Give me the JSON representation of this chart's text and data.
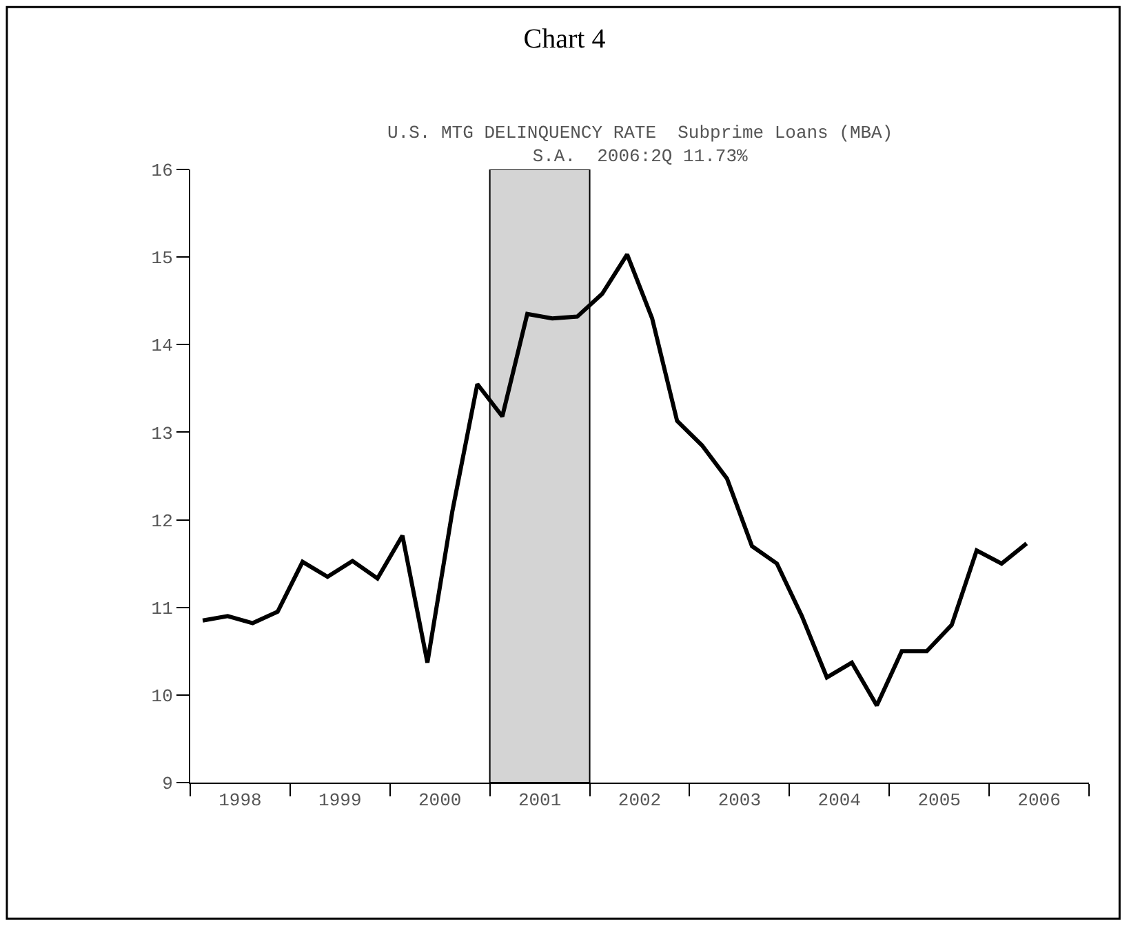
{
  "chart_data": {
    "type": "line",
    "title": "Chart 4",
    "subtitle": "U.S. MTG DELINQUENCY RATE  Subprime Loans (MBA)\nS.A.  2006:2Q 11.73%",
    "x": [
      1998.125,
      1998.375,
      1998.625,
      1998.875,
      1999.125,
      1999.375,
      1999.625,
      1999.875,
      2000.125,
      2000.375,
      2000.625,
      2000.875,
      2001.125,
      2001.375,
      2001.625,
      2001.875,
      2002.125,
      2002.375,
      2002.625,
      2002.875,
      2003.125,
      2003.375,
      2003.625,
      2003.875,
      2004.125,
      2004.375,
      2004.625,
      2004.875,
      2005.125,
      2005.375,
      2005.625,
      2005.875,
      2006.125,
      2006.375
    ],
    "series": [
      {
        "color": "#000000",
        "values": [
          10.85,
          10.9,
          10.82,
          10.95,
          11.52,
          11.35,
          11.53,
          11.33,
          11.82,
          10.37,
          12.1,
          13.55,
          13.18,
          14.35,
          14.3,
          14.32,
          14.58,
          15.03,
          14.3,
          13.13,
          12.85,
          12.47,
          11.7,
          11.5,
          10.9,
          10.2,
          10.37,
          9.88,
          10.5,
          10.5,
          10.8,
          11.65,
          11.5,
          11.73
        ]
      }
    ],
    "xlim": [
      1998,
      2007
    ],
    "xticks": [
      {
        "value": 1998,
        "label": null
      },
      {
        "value": 1998.5,
        "label": "1998"
      },
      {
        "value": 1999,
        "label": null
      },
      {
        "value": 1999.5,
        "label": "1999"
      },
      {
        "value": 2000,
        "label": null
      },
      {
        "value": 2000.5,
        "label": "2000"
      },
      {
        "value": 2001,
        "label": null
      },
      {
        "value": 2001.5,
        "label": "2001"
      },
      {
        "value": 2002,
        "label": null
      },
      {
        "value": 2002.5,
        "label": "2002"
      },
      {
        "value": 2003,
        "label": null
      },
      {
        "value": 2003.5,
        "label": "2003"
      },
      {
        "value": 2004,
        "label": null
      },
      {
        "value": 2004.5,
        "label": "2004"
      },
      {
        "value": 2005,
        "label": null
      },
      {
        "value": 2005.5,
        "label": "2005"
      },
      {
        "value": 2006,
        "label": null
      },
      {
        "value": 2006.5,
        "label": "2006"
      },
      {
        "value": 2007,
        "label": null
      }
    ],
    "ylim": [
      9,
      16
    ],
    "yticks": [
      9,
      10,
      11,
      12,
      13,
      14,
      15,
      16
    ],
    "bands": [
      {
        "axis": "x",
        "from": 2001,
        "to": 2002,
        "color": "#d4d4d4"
      }
    ],
    "grid": false,
    "marker": "none",
    "line_style": "solid"
  }
}
